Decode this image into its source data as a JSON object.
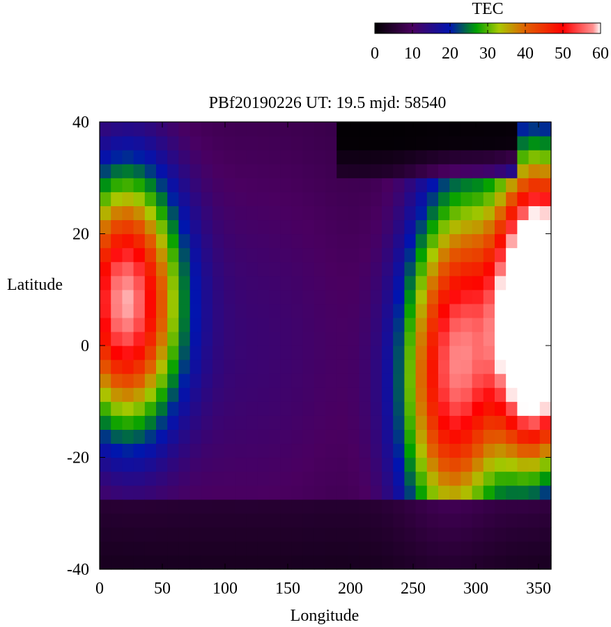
{
  "chart_data": {
    "type": "heatmap",
    "title": "PBf20190226  UT: 19.5  mjd: 58540",
    "xlabel": "Longitude",
    "ylabel": "Latitude",
    "xlim": [
      0,
      360
    ],
    "ylim": [
      -40,
      40
    ],
    "x_ticks": [
      0,
      50,
      100,
      150,
      200,
      250,
      300,
      350
    ],
    "y_ticks": [
      -40,
      -20,
      0,
      20,
      40
    ],
    "grid_resolution": {
      "dlon": 9,
      "dlat": 2.5
    },
    "colorbar": {
      "label": "TEC",
      "range": [
        0,
        60
      ],
      "ticks": [
        0,
        10,
        20,
        30,
        40,
        50,
        60
      ],
      "colormap_stops": [
        [
          0,
          "#000000"
        ],
        [
          10,
          "#4a0060"
        ],
        [
          20,
          "#0014b0"
        ],
        [
          27,
          "#00a000"
        ],
        [
          33,
          "#a8c800"
        ],
        [
          40,
          "#e06000"
        ],
        [
          50,
          "#ff0000"
        ],
        [
          58,
          "#ff9090"
        ],
        [
          60,
          "#ffffff"
        ]
      ]
    },
    "features": [
      {
        "name": "crest A",
        "lon_center": 20,
        "lon_halfwidth": 55,
        "lat_center": 8,
        "lat_halfwidth": 16,
        "peak_tec": 50
      },
      {
        "name": "crest B",
        "lon_center": 285,
        "lon_halfwidth": 55,
        "lat_center": -3,
        "lat_halfwidth": 22,
        "peak_tec": 50
      },
      {
        "name": "crest C",
        "lon_center": 345,
        "lon_halfwidth": 20,
        "lat_center": 5,
        "lat_halfwidth": 18,
        "peak_tec": 57
      },
      {
        "name": "band",
        "lon_center": 120,
        "lat_center": 0,
        "tec": 10
      },
      {
        "name": "low region",
        "lat_below": -27,
        "tec": 2
      }
    ]
  }
}
